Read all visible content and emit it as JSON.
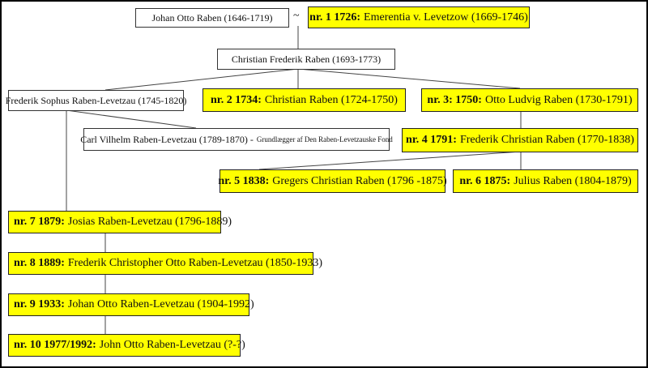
{
  "highlight_color": "#ffff00",
  "spouse_symbol": "~",
  "people": {
    "johan_otto": "Johan Otto Raben (1646-1719)",
    "nr1": {
      "prefix": "nr. 1 1726:",
      "name": "Emerentia v. Levetzow (1669-1746)"
    },
    "christian_frederik": "Christian Frederik Raben (1693-1773)",
    "frederik_sophus": "Frederik Sophus Raben-Levetzau (1745-1820)",
    "nr2": {
      "prefix": "nr. 2 1734:",
      "name": "Christian Raben (1724-1750)"
    },
    "nr3": {
      "prefix": "nr. 3: 1750:",
      "name": "Otto Ludvig Raben (1730-1791)"
    },
    "carl_vilhelm": {
      "name": "Carl Vilhelm Raben-Levetzau (1789-1870) -",
      "note": "Grundlægger af Den Raben-Levetzauske Fond"
    },
    "nr4": {
      "prefix": "nr. 4 1791:",
      "name": "Frederik Christian Raben (1770-1838)"
    },
    "nr5": {
      "prefix": "nr. 5 1838:",
      "name": "Gregers Christian Raben (1796 -1875)"
    },
    "nr6": {
      "prefix": "nr. 6 1875:",
      "name": "Julius Raben (1804-1879)"
    },
    "nr7": {
      "prefix": "nr. 7 1879:",
      "name": "Josias Raben-Levetzau (1796-1889)"
    },
    "nr8": {
      "prefix": "nr. 8 1889:",
      "name": "Frederik Christopher Otto Raben-Levetzau (1850-1933)"
    },
    "nr9": {
      "prefix": "nr. 9 1933:",
      "name": "Johan Otto Raben-Levetzau (1904-1992)"
    },
    "nr10": {
      "prefix": "nr. 10 1977/1992:",
      "name": "John Otto Raben-Levetzau (?-?)"
    }
  }
}
